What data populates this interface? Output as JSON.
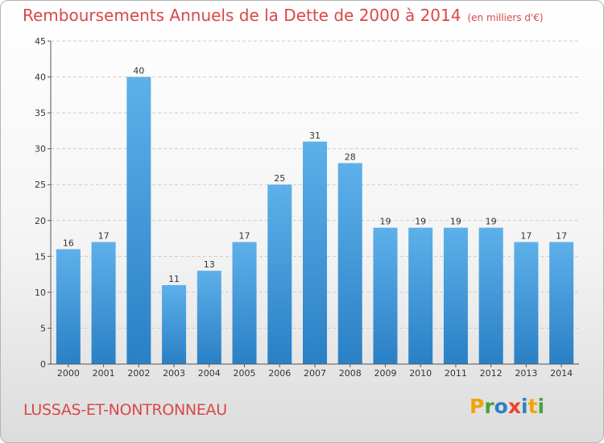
{
  "header": {
    "title": "Remboursements Annuels de la Dette de 2000 à 2014",
    "subtitle": "(en milliers d'€)"
  },
  "footer": {
    "commune": "LUSSAS-ET-NONTRONNEAU",
    "logo_letters": [
      "P",
      "r",
      "o",
      "x",
      "i",
      "t",
      "i"
    ],
    "logo_colors": [
      "#f4a300",
      "#4aa23b",
      "#2f7fc1",
      "#e8452c",
      "#2f7fc1",
      "#f4a300",
      "#4aa23b"
    ]
  },
  "colors": {
    "text_accent": "#d9484a",
    "bar_top": "#5eb0ea",
    "bar_bottom": "#2a80c5",
    "grid": "#cccccc"
  },
  "chart_data": {
    "type": "bar",
    "categories": [
      "2000",
      "2001",
      "2002",
      "2003",
      "2004",
      "2005",
      "2006",
      "2007",
      "2008",
      "2009",
      "2010",
      "2011",
      "2012",
      "2013",
      "2014"
    ],
    "values": [
      16,
      17,
      40,
      11,
      13,
      17,
      25,
      31,
      28,
      19,
      19,
      19,
      19,
      17,
      17
    ],
    "data_labels": [
      "16",
      "17",
      "40",
      "11",
      "13",
      "17",
      "25",
      "31",
      "28",
      "19",
      "19",
      "19",
      "19",
      "17",
      "17"
    ],
    "title": "Remboursements Annuels de la Dette de 2000 à 2014",
    "subtitle": "(en milliers d'€)",
    "xlabel": "",
    "ylabel": "",
    "ylim": [
      0,
      45
    ],
    "yticks": [
      0,
      5,
      10,
      15,
      20,
      25,
      30,
      35,
      40,
      45
    ],
    "ytick_labels": [
      "0",
      "5",
      "10",
      "15",
      "20",
      "25",
      "30",
      "35",
      "40",
      "45"
    ],
    "grid": true,
    "legend": "none"
  }
}
